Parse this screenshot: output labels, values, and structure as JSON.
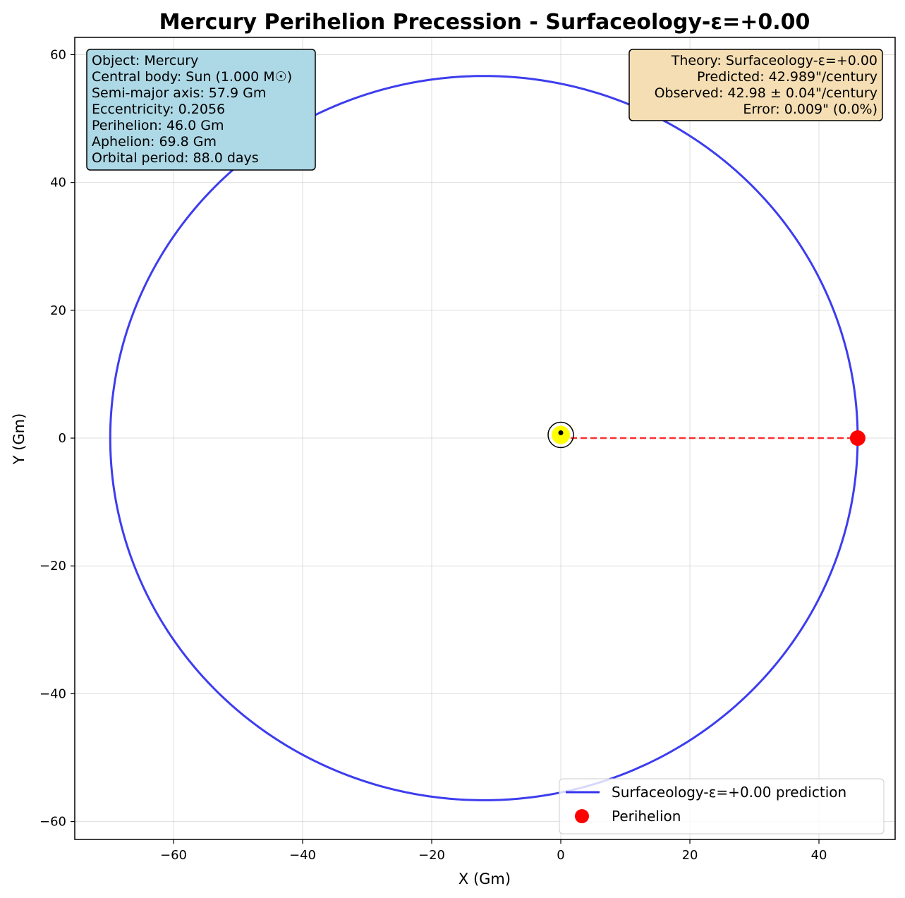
{
  "chart_data": {
    "type": "line",
    "title": "Mercury Perihelion Precession - Surfaceology-ε=+0.00",
    "xlabel": "X (Gm)",
    "ylabel": "Y (Gm)",
    "xlim": [
      -75.3,
      51.8
    ],
    "ylim": [
      -62.8,
      62.7
    ],
    "xticks": [
      -60,
      -40,
      -20,
      0,
      20,
      40
    ],
    "yticks": [
      -60,
      -40,
      -20,
      0,
      20,
      40,
      60
    ],
    "grid": true,
    "legend_position": "lower-right",
    "orbit": {
      "semi_major_axis": 57.9,
      "eccentricity": 0.2056,
      "perihelion_angle_deg": 0,
      "color": "#3333ee"
    },
    "sun": {
      "x": 0,
      "y": 0.5,
      "color": "#ffff00"
    },
    "perihelion_point": {
      "x": 46.0,
      "y": 0,
      "color": "#ff0000"
    },
    "series": [
      {
        "name": "Surfaceology-ε=+0.00 prediction",
        "color": "#3333ee"
      },
      {
        "name": "Perihelion",
        "color": "#ff0000"
      }
    ]
  },
  "info_box": {
    "background": "#add8e6",
    "lines": [
      "Object: Mercury",
      "Central body: Sun (1.000 M☉)",
      "Semi-major axis: 57.9 Gm",
      "Eccentricity: 0.2056",
      "Perihelion: 46.0 Gm",
      "Aphelion: 69.8 Gm",
      "Orbital period: 88.0 days"
    ]
  },
  "theory_box": {
    "background": "#f5deb3",
    "lines": [
      "Theory: Surfaceology-ε=+0.00",
      "Predicted: 42.989\"/century",
      "Observed: 42.98 ± 0.04\"/century",
      "Error: 0.009\" (0.0%)"
    ]
  }
}
